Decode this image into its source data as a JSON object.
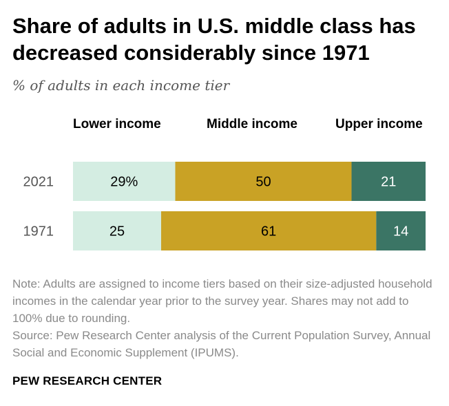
{
  "title": "Share of adults in U.S. middle class has decreased considerably since 1971",
  "subtitle": "% of adults in each income tier",
  "note": "Note: Adults are assigned to income tiers based on their size-adjusted household incomes in the calendar year prior to the survey year. Shares may not add to 100% due to rounding.",
  "source": "Source: Pew Research Center analysis of the Current Population Survey, Annual Social and Economic Supplement (IPUMS).",
  "footer": "PEW RESEARCH CENTER",
  "colors": {
    "lower": "#d4ede2",
    "middle": "#c9a225",
    "upper": "#3b7565"
  },
  "chart_data": {
    "type": "bar",
    "orientation": "horizontal",
    "stacked": true,
    "categories": [
      "2021",
      "1971"
    ],
    "series": [
      {
        "name": "Lower income",
        "values": [
          29,
          25
        ],
        "labels": [
          "29%",
          "25"
        ]
      },
      {
        "name": "Middle income",
        "values": [
          50,
          61
        ],
        "labels": [
          "50",
          "61"
        ]
      },
      {
        "name": "Upper income",
        "values": [
          21,
          14
        ],
        "labels": [
          "21",
          "14"
        ]
      }
    ],
    "xlim": [
      0,
      100
    ]
  }
}
